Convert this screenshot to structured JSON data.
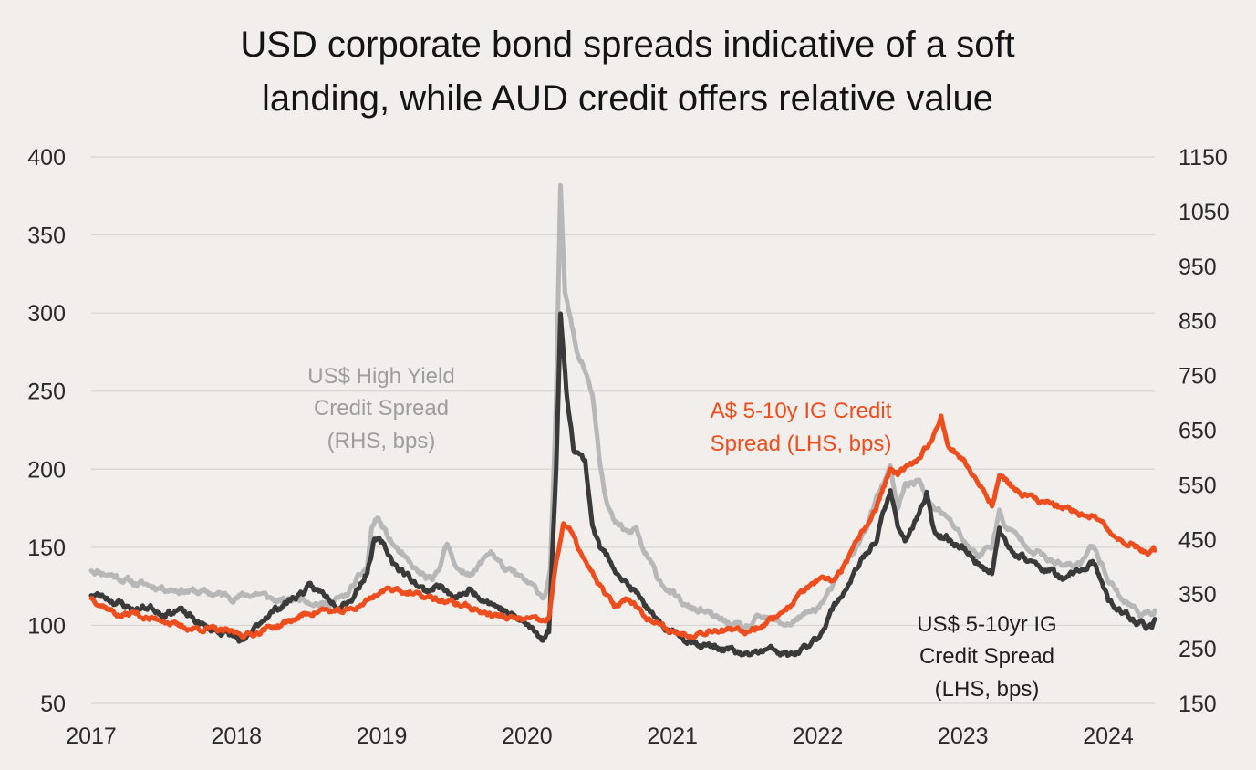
{
  "chart_data": {
    "type": "line",
    "title_lines": [
      "USD corporate bond spreads indicative of a soft",
      "landing, while AUD credit offers relative value"
    ],
    "x_ticks": [
      "2017",
      "2018",
      "2019",
      "2020",
      "2021",
      "2022",
      "2023",
      "2024"
    ],
    "x_range": [
      2017.0,
      2024.32
    ],
    "y_left": {
      "range": [
        50,
        400
      ],
      "ticks": [
        "400",
        "350",
        "300",
        "250",
        "200",
        "150",
        "100",
        "50"
      ]
    },
    "y_right": {
      "range": [
        150,
        1150
      ],
      "ticks": [
        "1150",
        "1050",
        "950",
        "850",
        "750",
        "650",
        "550",
        "450",
        "350",
        "250",
        "150"
      ]
    },
    "grid": "horizontal",
    "series": [
      {
        "name": "US$ High Yield Credit Spread",
        "axis": "right",
        "color": "#b7b7b7",
        "points": [
          [
            2017.0,
            395
          ],
          [
            2017.15,
            385
          ],
          [
            2017.3,
            370
          ],
          [
            2017.5,
            362
          ],
          [
            2017.7,
            355
          ],
          [
            2017.85,
            350
          ],
          [
            2018.0,
            345
          ],
          [
            2018.15,
            352
          ],
          [
            2018.3,
            335
          ],
          [
            2018.45,
            345
          ],
          [
            2018.6,
            330
          ],
          [
            2018.75,
            345
          ],
          [
            2018.9,
            400
          ],
          [
            2018.93,
            470
          ],
          [
            2018.97,
            490
          ],
          [
            2019.05,
            450
          ],
          [
            2019.2,
            400
          ],
          [
            2019.35,
            370
          ],
          [
            2019.45,
            440
          ],
          [
            2019.55,
            385
          ],
          [
            2019.65,
            395
          ],
          [
            2019.75,
            430
          ],
          [
            2019.85,
            395
          ],
          [
            2019.95,
            380
          ],
          [
            2020.05,
            360
          ],
          [
            2020.12,
            345
          ],
          [
            2020.16,
            395
          ],
          [
            2020.2,
            700
          ],
          [
            2020.23,
            1090
          ],
          [
            2020.26,
            900
          ],
          [
            2020.3,
            860
          ],
          [
            2020.35,
            790
          ],
          [
            2020.4,
            760
          ],
          [
            2020.45,
            720
          ],
          [
            2020.5,
            600
          ],
          [
            2020.55,
            520
          ],
          [
            2020.6,
            480
          ],
          [
            2020.7,
            460
          ],
          [
            2020.75,
            470
          ],
          [
            2020.8,
            430
          ],
          [
            2020.9,
            380
          ],
          [
            2021.0,
            350
          ],
          [
            2021.1,
            325
          ],
          [
            2021.2,
            320
          ],
          [
            2021.3,
            305
          ],
          [
            2021.4,
            295
          ],
          [
            2021.5,
            285
          ],
          [
            2021.6,
            305
          ],
          [
            2021.7,
            300
          ],
          [
            2021.8,
            295
          ],
          [
            2021.9,
            310
          ],
          [
            2022.0,
            325
          ],
          [
            2022.1,
            360
          ],
          [
            2022.2,
            410
          ],
          [
            2022.3,
            450
          ],
          [
            2022.4,
            520
          ],
          [
            2022.5,
            580
          ],
          [
            2022.55,
            500
          ],
          [
            2022.6,
            550
          ],
          [
            2022.7,
            560
          ],
          [
            2022.75,
            520
          ],
          [
            2022.85,
            500
          ],
          [
            2022.95,
            470
          ],
          [
            2023.0,
            450
          ],
          [
            2023.1,
            420
          ],
          [
            2023.2,
            440
          ],
          [
            2023.25,
            500
          ],
          [
            2023.3,
            470
          ],
          [
            2023.4,
            450
          ],
          [
            2023.5,
            430
          ],
          [
            2023.6,
            410
          ],
          [
            2023.7,
            400
          ],
          [
            2023.8,
            405
          ],
          [
            2023.9,
            440
          ],
          [
            2024.0,
            380
          ],
          [
            2024.1,
            340
          ],
          [
            2024.2,
            320
          ],
          [
            2024.28,
            310
          ],
          [
            2024.32,
            320
          ]
        ]
      },
      {
        "name": "US$ 5-10yr IG Credit Spread",
        "axis": "left",
        "color": "#3a3a3a",
        "points": [
          [
            2017.0,
            120
          ],
          [
            2017.1,
            118
          ],
          [
            2017.2,
            114
          ],
          [
            2017.3,
            110
          ],
          [
            2017.4,
            112
          ],
          [
            2017.5,
            108
          ],
          [
            2017.6,
            110
          ],
          [
            2017.7,
            104
          ],
          [
            2017.8,
            98
          ],
          [
            2017.9,
            96
          ],
          [
            2018.0,
            92
          ],
          [
            2018.05,
            88
          ],
          [
            2018.1,
            94
          ],
          [
            2018.2,
            106
          ],
          [
            2018.3,
            112
          ],
          [
            2018.4,
            118
          ],
          [
            2018.5,
            124
          ],
          [
            2018.6,
            120
          ],
          [
            2018.7,
            114
          ],
          [
            2018.8,
            118
          ],
          [
            2018.9,
            135
          ],
          [
            2018.95,
            155
          ],
          [
            2019.0,
            152
          ],
          [
            2019.1,
            138
          ],
          [
            2019.2,
            130
          ],
          [
            2019.3,
            122
          ],
          [
            2019.4,
            126
          ],
          [
            2019.5,
            116
          ],
          [
            2019.6,
            122
          ],
          [
            2019.7,
            118
          ],
          [
            2019.8,
            112
          ],
          [
            2019.9,
            106
          ],
          [
            2020.0,
            100
          ],
          [
            2020.1,
            92
          ],
          [
            2020.15,
            96
          ],
          [
            2020.2,
            200
          ],
          [
            2020.23,
            300
          ],
          [
            2020.27,
            250
          ],
          [
            2020.32,
            215
          ],
          [
            2020.4,
            205
          ],
          [
            2020.45,
            165
          ],
          [
            2020.5,
            150
          ],
          [
            2020.6,
            138
          ],
          [
            2020.7,
            125
          ],
          [
            2020.8,
            115
          ],
          [
            2020.9,
            100
          ],
          [
            2021.0,
            96
          ],
          [
            2021.1,
            92
          ],
          [
            2021.2,
            88
          ],
          [
            2021.3,
            86
          ],
          [
            2021.4,
            84
          ],
          [
            2021.5,
            80
          ],
          [
            2021.6,
            83
          ],
          [
            2021.7,
            84
          ],
          [
            2021.8,
            80
          ],
          [
            2021.9,
            84
          ],
          [
            2022.0,
            92
          ],
          [
            2022.1,
            110
          ],
          [
            2022.2,
            125
          ],
          [
            2022.3,
            140
          ],
          [
            2022.4,
            155
          ],
          [
            2022.5,
            185
          ],
          [
            2022.55,
            165
          ],
          [
            2022.6,
            155
          ],
          [
            2022.7,
            170
          ],
          [
            2022.75,
            185
          ],
          [
            2022.8,
            160
          ],
          [
            2022.9,
            155
          ],
          [
            2023.0,
            150
          ],
          [
            2023.1,
            140
          ],
          [
            2023.2,
            135
          ],
          [
            2023.25,
            160
          ],
          [
            2023.3,
            150
          ],
          [
            2023.4,
            145
          ],
          [
            2023.5,
            138
          ],
          [
            2023.6,
            135
          ],
          [
            2023.7,
            128
          ],
          [
            2023.8,
            135
          ],
          [
            2023.9,
            140
          ],
          [
            2024.0,
            115
          ],
          [
            2024.1,
            108
          ],
          [
            2024.2,
            102
          ],
          [
            2024.3,
            98
          ],
          [
            2024.32,
            104
          ]
        ]
      },
      {
        "name": "A$ 5-10y IG Credit Spread",
        "axis": "left",
        "color": "#ee4d1d",
        "points": [
          [
            2017.0,
            118
          ],
          [
            2017.1,
            112
          ],
          [
            2017.2,
            106
          ],
          [
            2017.3,
            108
          ],
          [
            2017.4,
            104
          ],
          [
            2017.5,
            104
          ],
          [
            2017.6,
            99
          ],
          [
            2017.7,
            98
          ],
          [
            2017.8,
            98
          ],
          [
            2017.9,
            96
          ],
          [
            2018.0,
            95
          ],
          [
            2018.1,
            94
          ],
          [
            2018.2,
            98
          ],
          [
            2018.3,
            100
          ],
          [
            2018.4,
            104
          ],
          [
            2018.5,
            108
          ],
          [
            2018.6,
            110
          ],
          [
            2018.7,
            108
          ],
          [
            2018.8,
            110
          ],
          [
            2018.9,
            116
          ],
          [
            2019.0,
            122
          ],
          [
            2019.1,
            124
          ],
          [
            2019.2,
            120
          ],
          [
            2019.3,
            118
          ],
          [
            2019.4,
            116
          ],
          [
            2019.5,
            114
          ],
          [
            2019.6,
            112
          ],
          [
            2019.7,
            108
          ],
          [
            2019.8,
            106
          ],
          [
            2019.9,
            104
          ],
          [
            2020.0,
            104
          ],
          [
            2020.1,
            102
          ],
          [
            2020.15,
            104
          ],
          [
            2020.2,
            140
          ],
          [
            2020.25,
            166
          ],
          [
            2020.3,
            160
          ],
          [
            2020.4,
            140
          ],
          [
            2020.5,
            125
          ],
          [
            2020.6,
            112
          ],
          [
            2020.7,
            118
          ],
          [
            2020.8,
            108
          ],
          [
            2020.9,
            100
          ],
          [
            2021.0,
            96
          ],
          [
            2021.1,
            94
          ],
          [
            2021.2,
            96
          ],
          [
            2021.3,
            98
          ],
          [
            2021.4,
            96
          ],
          [
            2021.5,
            96
          ],
          [
            2021.6,
            100
          ],
          [
            2021.7,
            105
          ],
          [
            2021.8,
            112
          ],
          [
            2021.9,
            122
          ],
          [
            2022.0,
            128
          ],
          [
            2022.1,
            128
          ],
          [
            2022.2,
            140
          ],
          [
            2022.3,
            158
          ],
          [
            2022.4,
            175
          ],
          [
            2022.5,
            200
          ],
          [
            2022.55,
            196
          ],
          [
            2022.6,
            200
          ],
          [
            2022.7,
            205
          ],
          [
            2022.8,
            222
          ],
          [
            2022.85,
            234
          ],
          [
            2022.9,
            216
          ],
          [
            2023.0,
            206
          ],
          [
            2023.1,
            192
          ],
          [
            2023.2,
            178
          ],
          [
            2023.25,
            196
          ],
          [
            2023.3,
            192
          ],
          [
            2023.4,
            184
          ],
          [
            2023.5,
            180
          ],
          [
            2023.6,
            178
          ],
          [
            2023.7,
            174
          ],
          [
            2023.8,
            172
          ],
          [
            2023.9,
            170
          ],
          [
            2024.0,
            160
          ],
          [
            2024.1,
            155
          ],
          [
            2024.2,
            150
          ],
          [
            2024.28,
            146
          ],
          [
            2024.32,
            148
          ]
        ]
      }
    ],
    "annotations": [
      {
        "id": "hy",
        "lines": [
          "US$ High Yield",
          "Credit Spread",
          "(RHS, bps)"
        ],
        "color": "#9d9d9d"
      },
      {
        "id": "aud",
        "lines": [
          "A$ 5-10y IG Credit",
          "Spread (LHS, bps)"
        ],
        "color": "#ee4d1d"
      },
      {
        "id": "ig",
        "lines": [
          "US$ 5-10yr IG",
          "Credit Spread",
          "(LHS, bps)"
        ],
        "color": "#1e1e1e"
      }
    ]
  }
}
